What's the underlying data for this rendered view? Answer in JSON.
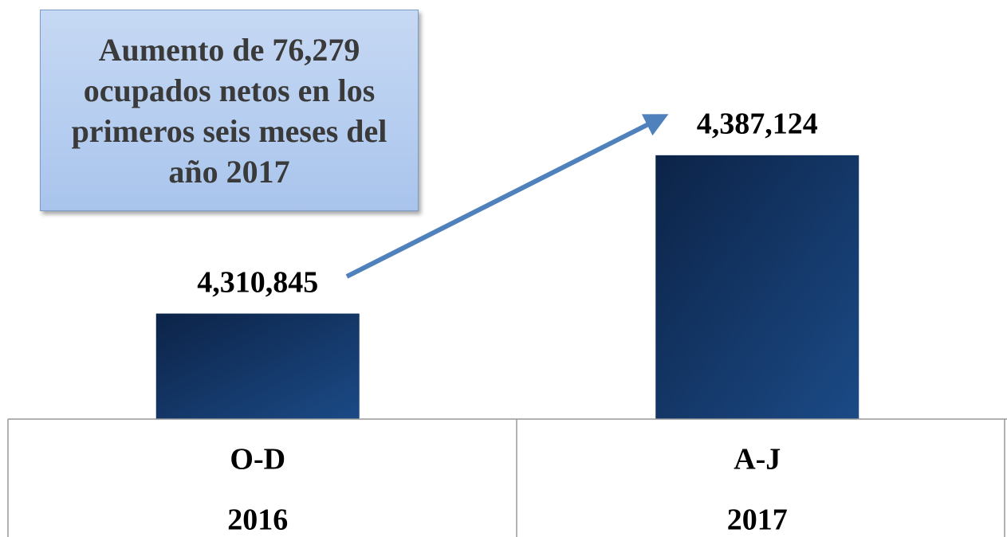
{
  "chart_data": {
    "type": "bar",
    "annotation": "Aumento de 76,279 ocupados netos en los primeros seis meses del año 2017",
    "categories": [
      [
        "O-D",
        "2016"
      ],
      [
        "A-J",
        "2017"
      ]
    ],
    "values": [
      4310845,
      4387124
    ],
    "value_labels": [
      "4,310,845",
      "4,387,124"
    ],
    "color": "#153d73",
    "ylim": [
      4260000,
      4460000
    ]
  }
}
